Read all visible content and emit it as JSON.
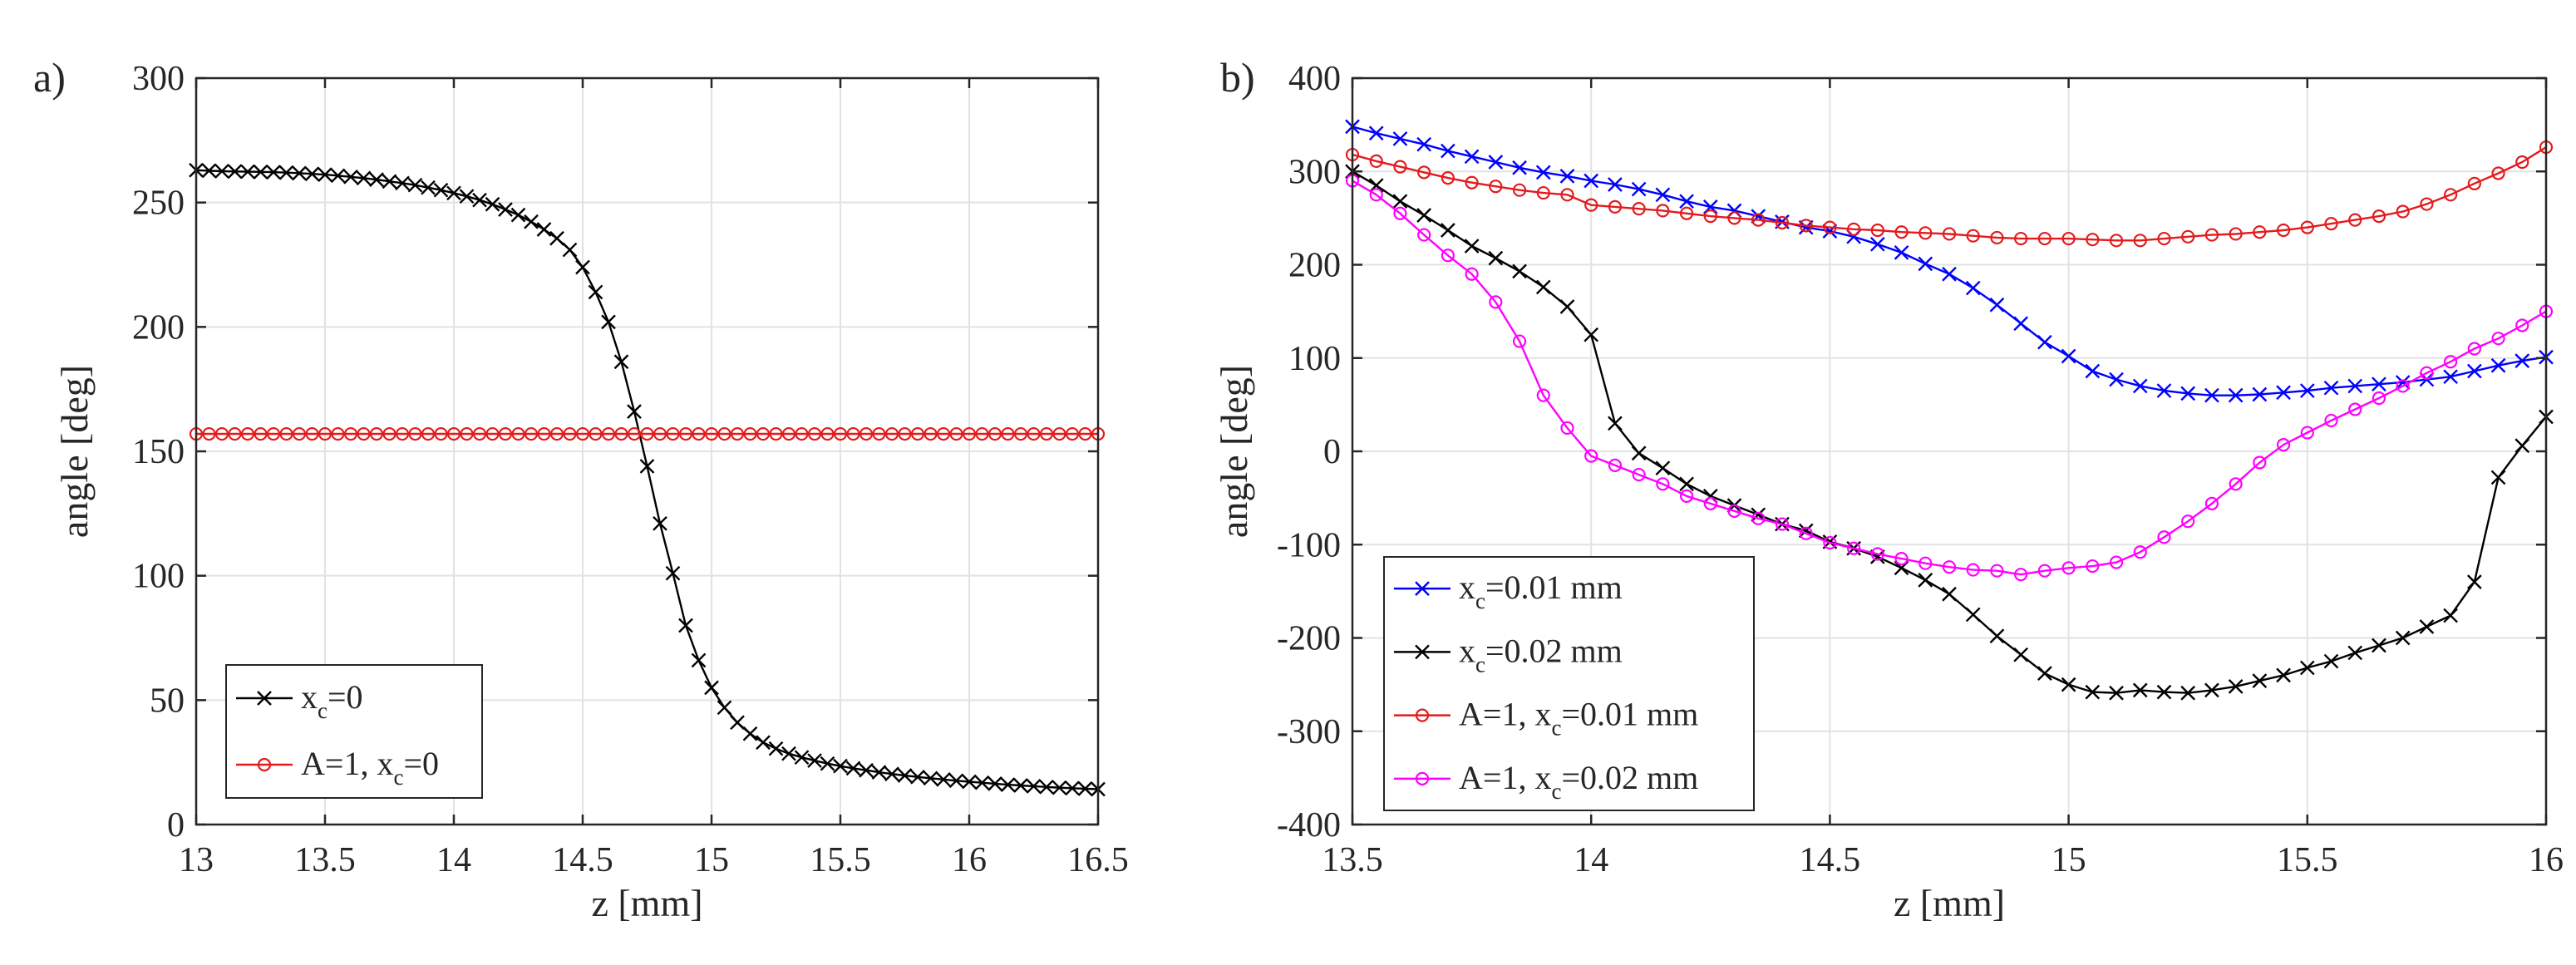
{
  "chart_data": [
    {
      "panel_label": "a)",
      "type": "line",
      "xlabel": "z [mm]",
      "ylabel": "angle [deg]",
      "xlim": [
        13,
        16.5
      ],
      "ylim": [
        0,
        300
      ],
      "xticks": [
        13,
        13.5,
        14,
        14.5,
        15,
        15.5,
        16,
        16.5
      ],
      "xtick_labels": [
        "13",
        "13.5",
        "14",
        "14.5",
        "15",
        "15.5",
        "16",
        "16.5"
      ],
      "yticks": [
        0,
        50,
        100,
        150,
        200,
        250,
        300
      ],
      "ytick_labels": [
        "0",
        "50",
        "100",
        "150",
        "200",
        "250",
        "300"
      ],
      "grid": true,
      "legend_position": "bottom-left",
      "series": [
        {
          "legend_main": "x",
          "legend_sub": "c",
          "legend_rest": "=0",
          "color": "#000000",
          "marker": "x",
          "x": [
            13.0,
            13.05,
            13.1,
            13.15,
            13.2,
            13.25,
            13.3,
            13.35,
            13.4,
            13.45,
            13.5,
            13.55,
            13.6,
            13.65,
            13.7,
            13.75,
            13.8,
            13.85,
            13.9,
            13.95,
            14.0,
            14.05,
            14.1,
            14.15,
            14.2,
            14.25,
            14.3,
            14.35,
            14.4,
            14.45,
            14.5,
            14.55,
            14.6,
            14.65,
            14.7,
            14.75,
            14.8,
            14.85,
            14.9,
            14.95,
            15.0,
            15.05,
            15.1,
            15.15,
            15.2,
            15.25,
            15.3,
            15.35,
            15.4,
            15.45,
            15.5,
            15.55,
            15.6,
            15.65,
            15.7,
            15.75,
            15.8,
            15.85,
            15.9,
            15.95,
            16.0,
            16.05,
            16.1,
            16.15,
            16.2,
            16.25,
            16.3,
            16.35,
            16.4,
            16.45,
            16.5
          ],
          "y": [
            263,
            262.8,
            262.6,
            262.5,
            262.4,
            262.3,
            262.2,
            262,
            261.8,
            261.5,
            261.2,
            260.8,
            260.3,
            259.8,
            259.2,
            258.5,
            257.8,
            257,
            256,
            255,
            253.8,
            252.5,
            251,
            249.3,
            247.2,
            245,
            242.3,
            239.2,
            235.6,
            231,
            224,
            214,
            202,
            186,
            166,
            144,
            121,
            101,
            80,
            66,
            55,
            47,
            41,
            36.5,
            33,
            30.5,
            28.5,
            27,
            25.7,
            24.5,
            23.5,
            22.6,
            21.8,
            21,
            20.3,
            19.7,
            19.1,
            18.6,
            18.1,
            17.6,
            17.2,
            16.8,
            16.4,
            16,
            15.7,
            15.4,
            15.1,
            14.8,
            14.6,
            14.4,
            14.2
          ]
        },
        {
          "legend_main": "A=1, x",
          "legend_sub": "c",
          "legend_rest": "=0",
          "color": "#e41a1c",
          "marker": "o",
          "x": [
            13.0,
            13.05,
            13.1,
            13.15,
            13.2,
            13.25,
            13.3,
            13.35,
            13.4,
            13.45,
            13.5,
            13.55,
            13.6,
            13.65,
            13.7,
            13.75,
            13.8,
            13.85,
            13.9,
            13.95,
            14.0,
            14.05,
            14.1,
            14.15,
            14.2,
            14.25,
            14.3,
            14.35,
            14.4,
            14.45,
            14.5,
            14.55,
            14.6,
            14.65,
            14.7,
            14.75,
            14.8,
            14.85,
            14.9,
            14.95,
            15.0,
            15.05,
            15.1,
            15.15,
            15.2,
            15.25,
            15.3,
            15.35,
            15.4,
            15.45,
            15.5,
            15.55,
            15.6,
            15.65,
            15.7,
            15.75,
            15.8,
            15.85,
            15.9,
            15.95,
            16.0,
            16.05,
            16.1,
            16.15,
            16.2,
            16.25,
            16.3,
            16.35,
            16.4,
            16.45,
            16.5
          ],
          "y": [
            157,
            157,
            157,
            157,
            157,
            157,
            157,
            157,
            157,
            157,
            157,
            157,
            157,
            157,
            157,
            157,
            157,
            157,
            157,
            157,
            157,
            157,
            157,
            157,
            157,
            157,
            157,
            157,
            157,
            157,
            157,
            157,
            157,
            157,
            157,
            157,
            157,
            157,
            157,
            157,
            157,
            157,
            157,
            157,
            157,
            157,
            157,
            157,
            157,
            157,
            157,
            157,
            157,
            157,
            157,
            157,
            157,
            157,
            157,
            157,
            157,
            157,
            157,
            157,
            157,
            157,
            157,
            157,
            157,
            157,
            157
          ]
        }
      ]
    },
    {
      "panel_label": "b)",
      "type": "line",
      "xlabel": "z [mm]",
      "ylabel": "angle [deg]",
      "xlim": [
        13.5,
        16
      ],
      "ylim": [
        -400,
        400
      ],
      "xticks": [
        13.5,
        14,
        14.5,
        15,
        15.5,
        16
      ],
      "xtick_labels": [
        "13.5",
        "14",
        "14.5",
        "15",
        "15.5",
        "16"
      ],
      "yticks": [
        -400,
        -300,
        -200,
        -100,
        0,
        100,
        200,
        300,
        400
      ],
      "ytick_labels": [
        "-400",
        "-300",
        "-200",
        "-100",
        "0",
        "100",
        "200",
        "300",
        "400"
      ],
      "grid": true,
      "legend_position": "bottom-left",
      "series": [
        {
          "legend_main": "x",
          "legend_sub": "c",
          "legend_rest": "=0.01 mm",
          "color": "#0000ff",
          "marker": "x",
          "x": [
            13.5,
            13.55,
            13.6,
            13.65,
            13.7,
            13.75,
            13.8,
            13.85,
            13.9,
            13.95,
            14.0,
            14.05,
            14.1,
            14.15,
            14.2,
            14.25,
            14.3,
            14.35,
            14.4,
            14.45,
            14.5,
            14.55,
            14.6,
            14.65,
            14.7,
            14.75,
            14.8,
            14.85,
            14.9,
            14.95,
            15.0,
            15.05,
            15.1,
            15.15,
            15.2,
            15.25,
            15.3,
            15.35,
            15.4,
            15.45,
            15.5,
            15.55,
            15.6,
            15.65,
            15.7,
            15.75,
            15.8,
            15.85,
            15.9,
            15.95,
            16.0
          ],
          "y": [
            348,
            341,
            335,
            329,
            322,
            316,
            310,
            304,
            299,
            295,
            290,
            286,
            281,
            275,
            268,
            262,
            258,
            252,
            246,
            240,
            236,
            230,
            222,
            213,
            201,
            190,
            175,
            157,
            137,
            117,
            102,
            86,
            77,
            70,
            65,
            62,
            60,
            60,
            61,
            63,
            65,
            68,
            70,
            72,
            74,
            77,
            80,
            86,
            92,
            97,
            101
          ]
        },
        {
          "legend_main": "x",
          "legend_sub": "c",
          "legend_rest": "=0.02 mm",
          "color": "#000000",
          "marker": "x",
          "x": [
            13.5,
            13.55,
            13.6,
            13.65,
            13.7,
            13.75,
            13.8,
            13.85,
            13.9,
            13.95,
            14.0,
            14.05,
            14.1,
            14.15,
            14.2,
            14.25,
            14.3,
            14.35,
            14.4,
            14.45,
            14.5,
            14.55,
            14.6,
            14.65,
            14.7,
            14.75,
            14.8,
            14.85,
            14.9,
            14.95,
            15.0,
            15.05,
            15.1,
            15.15,
            15.2,
            15.25,
            15.3,
            15.35,
            15.4,
            15.45,
            15.5,
            15.55,
            15.6,
            15.65,
            15.7,
            15.75,
            15.8,
            15.85,
            15.9,
            15.95,
            16.0
          ],
          "y": [
            300,
            285,
            268,
            253,
            237,
            220,
            207,
            193,
            176,
            155,
            125,
            30,
            -2,
            -18,
            -35,
            -48,
            -58,
            -68,
            -78,
            -85,
            -97,
            -104,
            -113,
            -125,
            -138,
            -153,
            -175,
            -198,
            -218,
            -238,
            -250,
            -258,
            -259,
            -256,
            -258,
            -259,
            -256,
            -252,
            -246,
            -240,
            -232,
            -225,
            -216,
            -208,
            -200,
            -188,
            -176,
            -140,
            -28,
            6,
            37
          ]
        },
        {
          "legend_main": "A=1, x",
          "legend_sub": "c",
          "legend_rest": "=0.01 mm",
          "color": "#e41a1c",
          "marker": "o",
          "x": [
            13.5,
            13.55,
            13.6,
            13.65,
            13.7,
            13.75,
            13.8,
            13.85,
            13.9,
            13.95,
            14.0,
            14.05,
            14.1,
            14.15,
            14.2,
            14.25,
            14.3,
            14.35,
            14.4,
            14.45,
            14.5,
            14.55,
            14.6,
            14.65,
            14.7,
            14.75,
            14.8,
            14.85,
            14.9,
            14.95,
            15.0,
            15.05,
            15.1,
            15.15,
            15.2,
            15.25,
            15.3,
            15.35,
            15.4,
            15.45,
            15.5,
            15.55,
            15.6,
            15.65,
            15.7,
            15.75,
            15.8,
            15.85,
            15.9,
            15.95,
            16.0
          ],
          "y": [
            318,
            311,
            305,
            299,
            293,
            288,
            284,
            280,
            277,
            275,
            264,
            262,
            260,
            258,
            255,
            252,
            250,
            248,
            245,
            242,
            240,
            238,
            237,
            235,
            234,
            233,
            231,
            229,
            228,
            228,
            228,
            227,
            226,
            226,
            228,
            230,
            232,
            233,
            235,
            237,
            240,
            244,
            248,
            252,
            257,
            265,
            275,
            287,
            298,
            310,
            326
          ]
        },
        {
          "legend_main": "A=1, x",
          "legend_sub": "c",
          "legend_rest": "=0.02 mm",
          "color": "#ff00ff",
          "marker": "o",
          "x": [
            13.5,
            13.55,
            13.6,
            13.65,
            13.7,
            13.75,
            13.8,
            13.85,
            13.9,
            13.95,
            14.0,
            14.05,
            14.1,
            14.15,
            14.2,
            14.25,
            14.3,
            14.35,
            14.4,
            14.45,
            14.5,
            14.55,
            14.6,
            14.65,
            14.7,
            14.75,
            14.8,
            14.85,
            14.9,
            14.95,
            15.0,
            15.05,
            15.1,
            15.15,
            15.2,
            15.25,
            15.3,
            15.35,
            15.4,
            15.45,
            15.5,
            15.55,
            15.6,
            15.65,
            15.7,
            15.75,
            15.8,
            15.85,
            15.9,
            15.95,
            16.0
          ],
          "y": [
            290,
            275,
            255,
            232,
            210,
            190,
            160,
            118,
            60,
            25,
            -5,
            -15,
            -25,
            -35,
            -48,
            -56,
            -64,
            -72,
            -78,
            -88,
            -98,
            -104,
            -110,
            -115,
            -120,
            -124,
            -127,
            -128,
            -132,
            -128,
            -125,
            -123,
            -119,
            -108,
            -92,
            -75,
            -56,
            -35,
            -12,
            7,
            20,
            33,
            45,
            57,
            70,
            84,
            96,
            110,
            121,
            135,
            150
          ]
        }
      ]
    }
  ]
}
